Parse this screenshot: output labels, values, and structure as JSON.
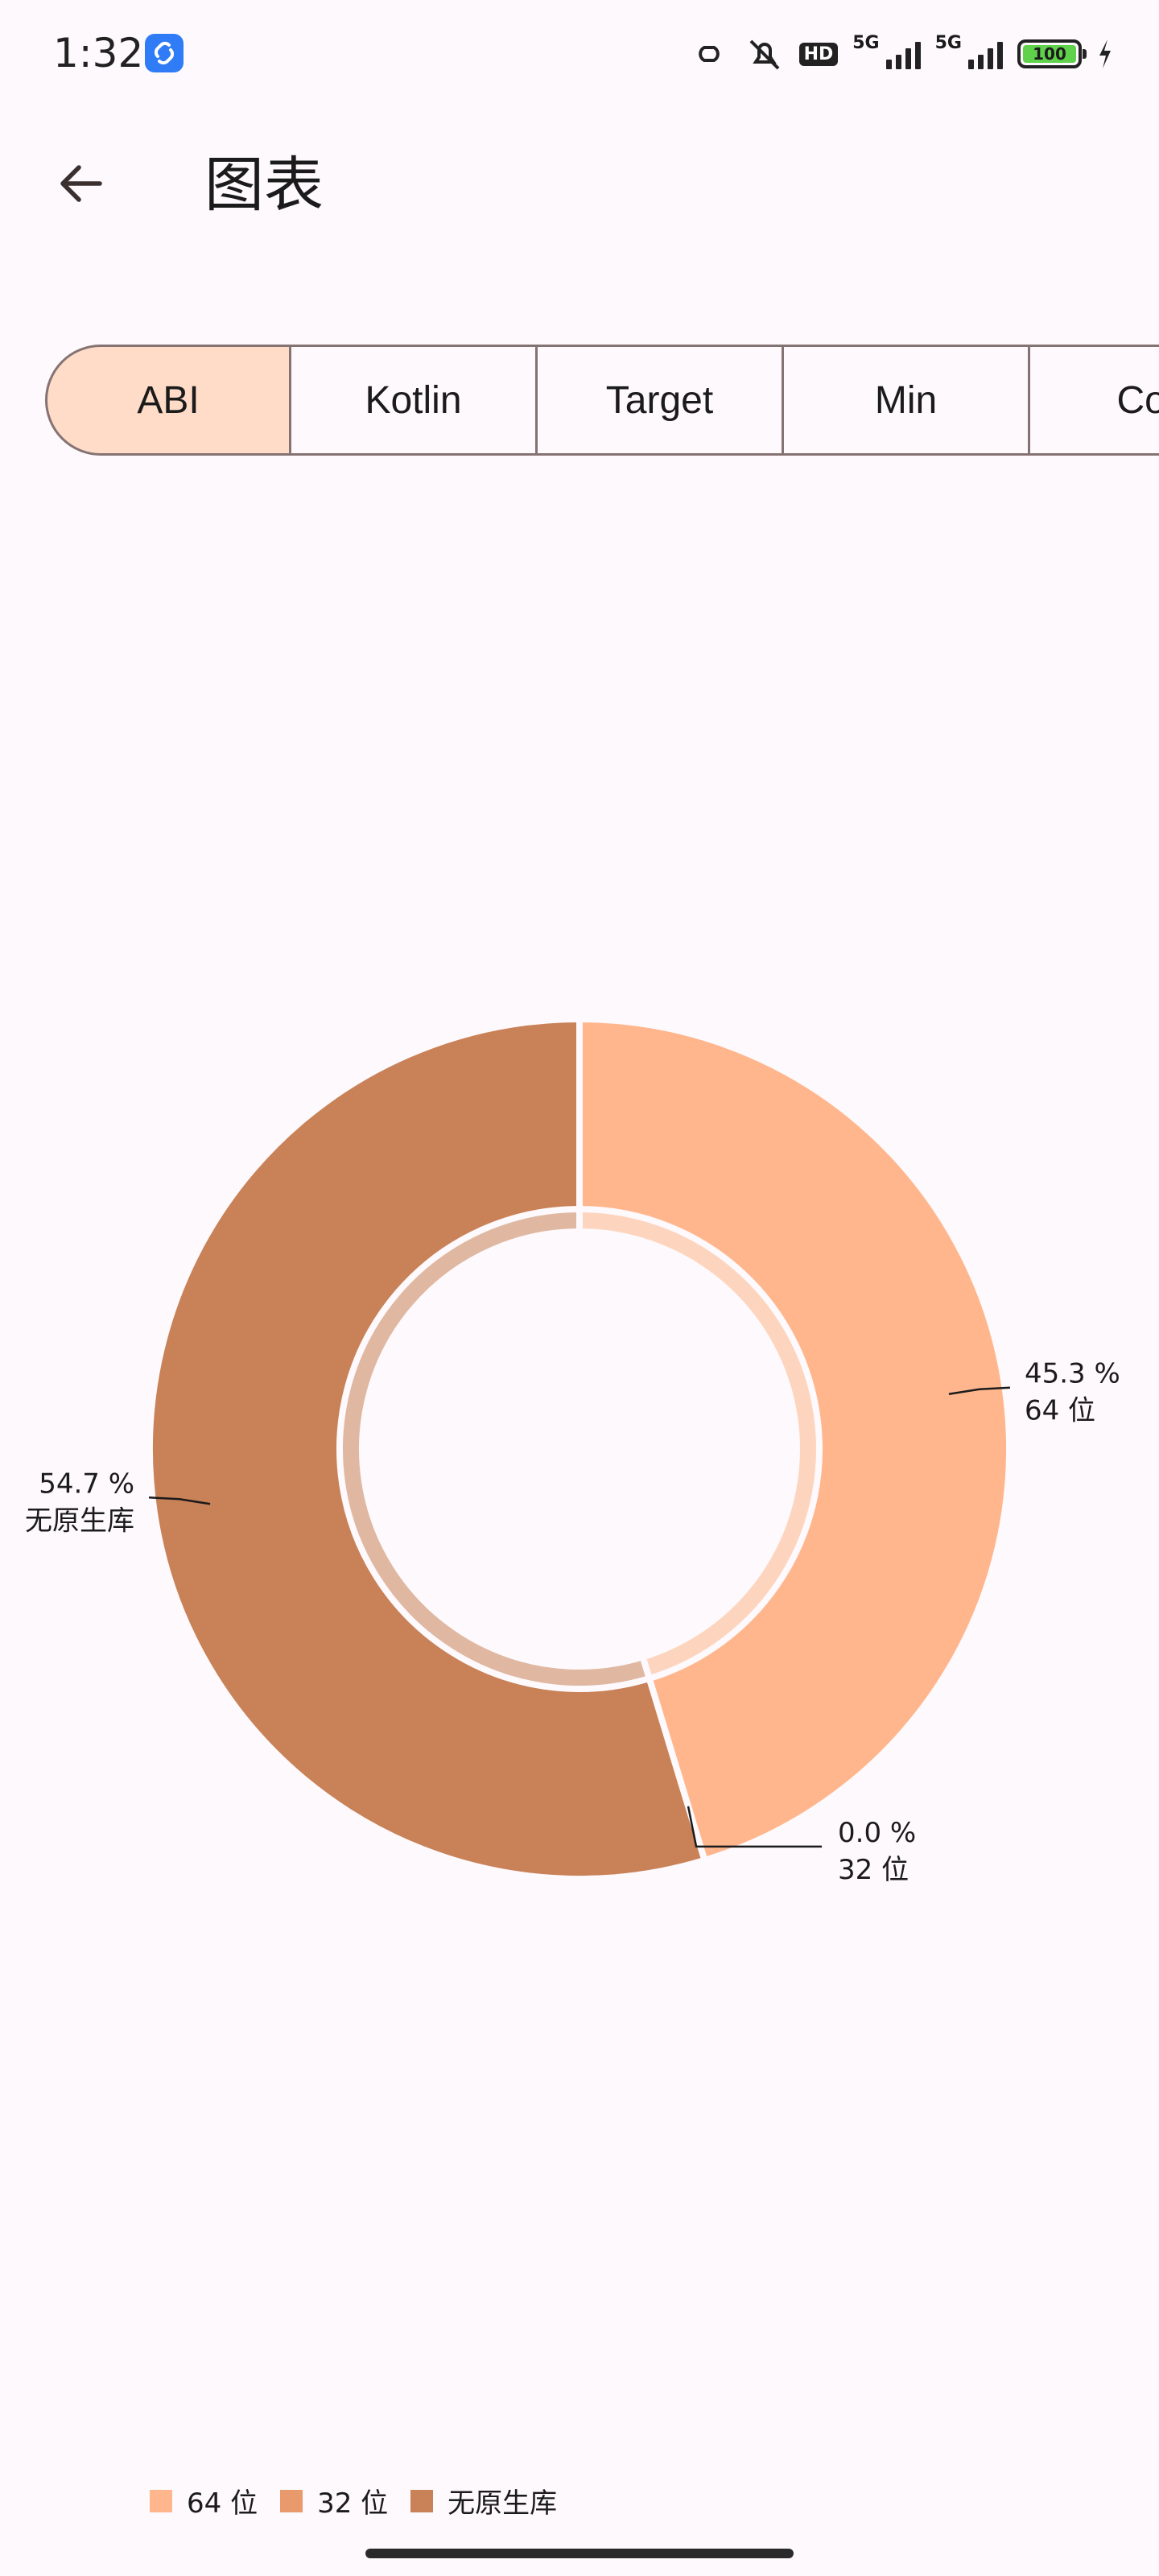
{
  "status_bar": {
    "time": "1:32",
    "network_label": "5G",
    "hd_label": "HD",
    "battery_level": "100"
  },
  "header": {
    "title": "图表"
  },
  "tabs": [
    {
      "label": "ABI",
      "selected": true
    },
    {
      "label": "Kotlin",
      "selected": false
    },
    {
      "label": "Target",
      "selected": false
    },
    {
      "label": "Min",
      "selected": false
    },
    {
      "label": "Con",
      "selected": false
    }
  ],
  "colors": {
    "background": "#fdf9fc",
    "selected_tab": "#ffdcc8",
    "series_64": "#ffb68d",
    "series_32": "#e99a6c",
    "series_none": "#c98157",
    "inner_64": "#fdd5be",
    "inner_none": "#e0b8a2"
  },
  "chart_data": {
    "type": "pie",
    "donut": true,
    "categories": [
      "64 位",
      "32 位",
      "无原生库"
    ],
    "values": [
      45.3,
      0.0,
      54.7
    ],
    "value_labels": [
      "45.3 %",
      "0.0 %",
      "54.7 %"
    ],
    "legend": {
      "placement": "bottom-left",
      "entries": [
        "64 位",
        "32 位",
        "无原生库"
      ]
    }
  }
}
